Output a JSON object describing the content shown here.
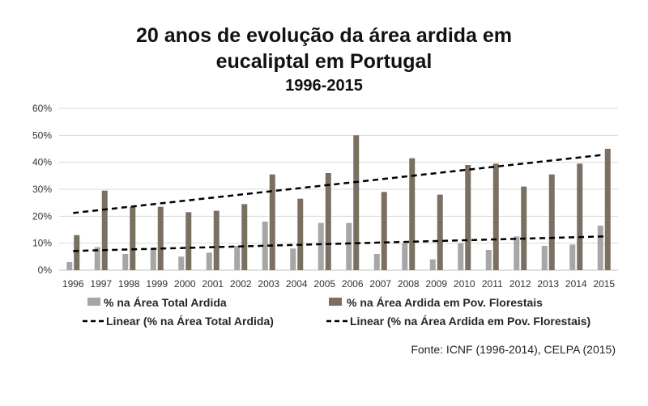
{
  "chart_data": {
    "type": "bar",
    "title": [
      "20 anos de evolução da área ardida em",
      "eucaliptal em Portugal",
      "1996-2015"
    ],
    "categories": [
      "1996",
      "1997",
      "1998",
      "1999",
      "2000",
      "2001",
      "2002",
      "2003",
      "2004",
      "2005",
      "2006",
      "2007",
      "2008",
      "2009",
      "2010",
      "2011",
      "2012",
      "2013",
      "2014",
      "2015"
    ],
    "yticks": [
      "0%",
      "10%",
      "20%",
      "30%",
      "40%",
      "50%",
      "60%"
    ],
    "ylim": [
      0,
      0.6
    ],
    "series": [
      {
        "name": "% na Área Total Ardida",
        "color": "#a6a6a6",
        "values": [
          0.03,
          0.085,
          0.06,
          0.08,
          0.05,
          0.065,
          0.09,
          0.18,
          0.08,
          0.175,
          0.175,
          0.06,
          0.1,
          0.04,
          0.1,
          0.075,
          0.125,
          0.09,
          0.095,
          0.165
        ]
      },
      {
        "name": "% na Área Ardida em Pov. Florestais",
        "color": "#7b6f62",
        "values": [
          0.13,
          0.295,
          0.235,
          0.235,
          0.215,
          0.22,
          0.245,
          0.355,
          0.265,
          0.36,
          0.5,
          0.29,
          0.415,
          0.28,
          0.39,
          0.395,
          0.31,
          0.355,
          0.395,
          0.45
        ]
      }
    ],
    "trendlines": [
      {
        "name": "Linear (% na Área Total Ardida)",
        "start": 0.071,
        "end": 0.125
      },
      {
        "name": "Linear (% na Área Ardida em Pov. Florestais)",
        "start": 0.212,
        "end": 0.428
      }
    ],
    "legend_position": "bottom",
    "source": "Fonte: ICNF (1996-2014),  CELPA (2015)"
  }
}
